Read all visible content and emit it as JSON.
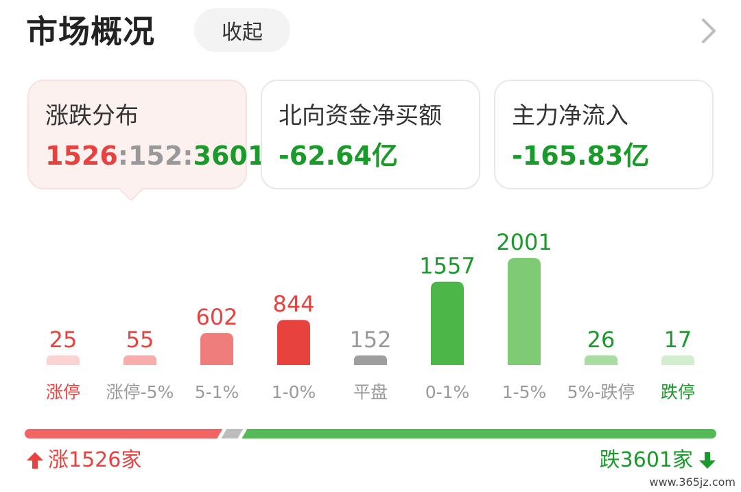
{
  "header": {
    "title": "市场概况",
    "collapse_label": "收起",
    "more_icon": "chevron-right-icon"
  },
  "cards": [
    {
      "label": "涨跌分布",
      "ratio": {
        "up": "1526",
        "sep1": ":",
        "flat": "152",
        "sep2": ":",
        "down": "3601"
      }
    },
    {
      "label": "北向资金净买额",
      "value": "-62.64亿"
    },
    {
      "label": "主力净流入",
      "value": "-165.83亿"
    }
  ],
  "chart_data": {
    "type": "bar",
    "categories": [
      "涨停",
      "涨停-5%",
      "5-1%",
      "1-0%",
      "平盘",
      "0-1%",
      "1-5%",
      "5%-跌停",
      "跌停"
    ],
    "values": [
      25,
      55,
      602,
      844,
      152,
      1557,
      2001,
      26,
      17
    ],
    "bar_colors": [
      "#fad3d2",
      "#f6adab",
      "#ef7d7b",
      "#e8423f",
      "#9e9e9e",
      "#4cb648",
      "#7fcb75",
      "#a8dca0",
      "#d3eecf"
    ],
    "label_colors": [
      "#e8423f",
      "#e8423f",
      "#e8423f",
      "#e8423f",
      "#999999",
      "#1a9a2a",
      "#1a9a2a",
      "#1a9a2a",
      "#1a9a2a"
    ],
    "category_label_colors": [
      "#e8423f",
      "#999999",
      "#999999",
      "#999999",
      "#999999",
      "#999999",
      "#999999",
      "#999999",
      "#1a9a2a"
    ],
    "title": "",
    "xlabel": "",
    "ylabel": "",
    "ylim": [
      0,
      2001
    ],
    "grid": false
  },
  "summary": {
    "up_label": "涨1526家",
    "down_label": "跌3601家",
    "up_count": 1526,
    "flat_count": 152,
    "down_count": 3601,
    "up_icon": "arrow-up-icon",
    "down_icon": "arrow-down-icon"
  },
  "watermark": "www.365jz.com",
  "colors": {
    "up": "#e8423f",
    "down": "#1a9a2a",
    "flat": "#999999",
    "up_bar": "#f26565",
    "down_bar": "#55b957",
    "flat_bar": "#bdbdbd"
  }
}
